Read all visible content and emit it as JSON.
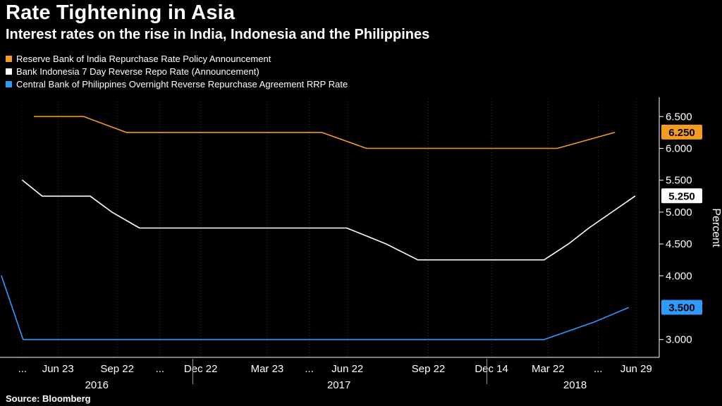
{
  "header": {
    "title": "Rate Tightening in Asia",
    "subtitle": "Interest rates on the rise in India, Indonesia and the Philippines"
  },
  "legend": [
    {
      "label": "Reserve Bank of India Repurchase Rate Policy Announcement",
      "color": "#f39c1f"
    },
    {
      "label": "Bank Indonesia 7 Day Reverse Repo Rate (Announcement)",
      "color": "#ffffff"
    },
    {
      "label": "Central Bank of Philippines Overnight Reverse Repurchase Agreement RRP Rate",
      "color": "#2f9bfe"
    }
  ],
  "footer": {
    "source": "Source: Bloomberg"
  },
  "chart_data": {
    "type": "line",
    "title": "Rate Tightening in Asia",
    "subtitle": "Interest rates on the rise in India, Indonesia and the Philippines",
    "ylabel": "Percent",
    "ylim": [
      2.72,
      6.78
    ],
    "grid": "vertical-dotted",
    "legend_position": "top-left",
    "colors": {
      "grid": "#303030",
      "axis": "#ffffff",
      "text": "#ffffff"
    },
    "y_ticks": [
      {
        "v": 6.5,
        "label": "6.500"
      },
      {
        "v": 6.0,
        "label": "6.000"
      },
      {
        "v": 5.5,
        "label": "5.500"
      },
      {
        "v": 5.0,
        "label": "5.000"
      },
      {
        "v": 4.5,
        "label": "4.500"
      },
      {
        "v": 4.0,
        "label": "4.000"
      },
      {
        "v": 3.0,
        "label": "3.000"
      }
    ],
    "last_value_badges": [
      {
        "v": 6.25,
        "label": "6.250",
        "color": "#f39c1f",
        "text_color": "#000000"
      },
      {
        "v": 5.25,
        "label": "5.250",
        "color": "#ffffff",
        "text_color": "#000000"
      },
      {
        "v": 3.5,
        "label": "3.500",
        "color": "#2f9bfe",
        "text_color": "#000000"
      }
    ],
    "x_ticks": [
      {
        "f": 0.032,
        "label": "..."
      },
      {
        "f": 0.086,
        "label": "Jun 23"
      },
      {
        "f": 0.176,
        "label": "Sep 22"
      },
      {
        "f": 0.241,
        "label": "..."
      },
      {
        "f": 0.303,
        "label": "Dec 22"
      },
      {
        "f": 0.404,
        "label": "Mar 23"
      },
      {
        "f": 0.468,
        "label": "..."
      },
      {
        "f": 0.526,
        "label": "Jun 22"
      },
      {
        "f": 0.649,
        "label": "Sep 22"
      },
      {
        "f": 0.745,
        "label": "Dec 14"
      },
      {
        "f": 0.831,
        "label": "Mar 22"
      },
      {
        "f": 0.907,
        "label": "..."
      },
      {
        "f": 0.965,
        "label": "Jun 29"
      }
    ],
    "years": [
      {
        "f": 0.145,
        "label": "2016"
      },
      {
        "f": 0.513,
        "label": "2017"
      },
      {
        "f": 0.872,
        "label": "2018"
      }
    ],
    "year_separators": [
      0.291,
      0.738
    ],
    "series": [
      {
        "id": "india",
        "name": "Reserve Bank of India Repurchase Rate Policy Announcement",
        "color": "#f39c1f",
        "last_value": 6.25,
        "points": [
          [
            0.05,
            6.5
          ],
          [
            0.125,
            6.5
          ],
          [
            0.19,
            6.25
          ],
          [
            0.487,
            6.25
          ],
          [
            0.555,
            6.0
          ],
          [
            0.845,
            6.0
          ],
          [
            0.932,
            6.25
          ]
        ]
      },
      {
        "id": "indonesia",
        "name": "Bank Indonesia 7 Day Reverse Repo Rate (Announcement)",
        "color": "#ffffff",
        "last_value": 5.25,
        "points": [
          [
            0.032,
            5.5
          ],
          [
            0.062,
            5.25
          ],
          [
            0.135,
            5.25
          ],
          [
            0.168,
            5.0
          ],
          [
            0.21,
            4.75
          ],
          [
            0.525,
            4.75
          ],
          [
            0.585,
            4.5
          ],
          [
            0.633,
            4.25
          ],
          [
            0.825,
            4.25
          ],
          [
            0.862,
            4.5
          ],
          [
            0.893,
            4.75
          ],
          [
            0.963,
            5.25
          ]
        ]
      },
      {
        "id": "philippines",
        "name": "Central Bank of Philippines Overnight Reverse Repurchase Agreement RRP Rate",
        "color": "#2f9bfe",
        "last_value": 3.5,
        "points": [
          [
            0.0,
            4.0
          ],
          [
            0.033,
            3.0
          ],
          [
            0.825,
            3.0
          ],
          [
            0.9,
            3.27
          ],
          [
            0.953,
            3.5
          ]
        ]
      }
    ]
  }
}
